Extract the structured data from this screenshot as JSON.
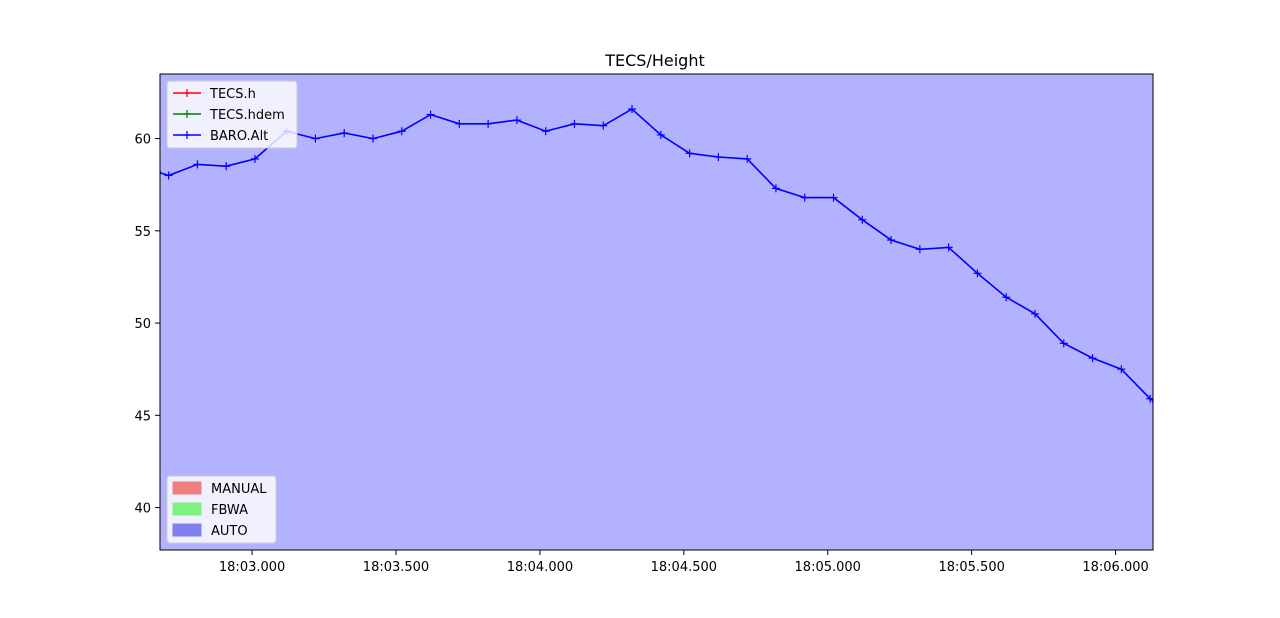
{
  "chart_data": {
    "type": "line",
    "title": "TECS/Height",
    "xlabel": "",
    "ylabel": "",
    "x_tick_labels": [
      "18:03.000",
      "18:03.500",
      "18:04.000",
      "18:04.500",
      "18:05.000",
      "18:05.500",
      "18:06.000"
    ],
    "x_tick_values": [
      3.0,
      3.5,
      4.0,
      4.5,
      5.0,
      5.5,
      6.0
    ],
    "x_unit_note": "seconds past 18:00 (mm:ss.sss)",
    "xlim": [
      2.68,
      6.13
    ],
    "y_ticks": [
      40,
      45,
      50,
      55,
      60
    ],
    "ylim": [
      37.7,
      63.5
    ],
    "grid": false,
    "background_mode": "AUTO",
    "series": [
      {
        "name": "TECS.h",
        "color": "#ff0000",
        "x": [],
        "y": []
      },
      {
        "name": "TECS.hdem",
        "color": "#008000",
        "x": [],
        "y": []
      },
      {
        "name": "BARO.Alt",
        "color": "#0000ff",
        "x": [
          2.67,
          2.71,
          2.81,
          2.91,
          3.01,
          3.12,
          3.22,
          3.32,
          3.42,
          3.52,
          3.62,
          3.72,
          3.82,
          3.92,
          4.02,
          4.12,
          4.22,
          4.32,
          4.42,
          4.52,
          4.62,
          4.72,
          4.82,
          4.92,
          5.02,
          5.12,
          5.22,
          5.32,
          5.42,
          5.52,
          5.62,
          5.72,
          5.82,
          5.92,
          6.02,
          6.12,
          6.14
        ],
        "y": [
          58.2,
          58.0,
          58.6,
          58.5,
          58.9,
          60.4,
          60.0,
          60.3,
          60.0,
          60.4,
          61.3,
          60.8,
          60.8,
          61.0,
          60.4,
          60.8,
          60.7,
          61.6,
          60.2,
          59.2,
          59.0,
          58.9,
          57.3,
          56.8,
          56.8,
          55.6,
          54.5,
          54.0,
          54.1,
          52.7,
          51.4,
          50.5,
          48.9,
          48.1,
          47.5,
          45.9,
          45.7
        ]
      }
    ],
    "mode_legend": [
      {
        "name": "MANUAL",
        "color": "#f08080"
      },
      {
        "name": "FBWA",
        "color": "#80f080"
      },
      {
        "name": "AUTO",
        "color": "#8080f0"
      }
    ],
    "legend_placement": "upper-left (series), lower-left (modes)"
  }
}
